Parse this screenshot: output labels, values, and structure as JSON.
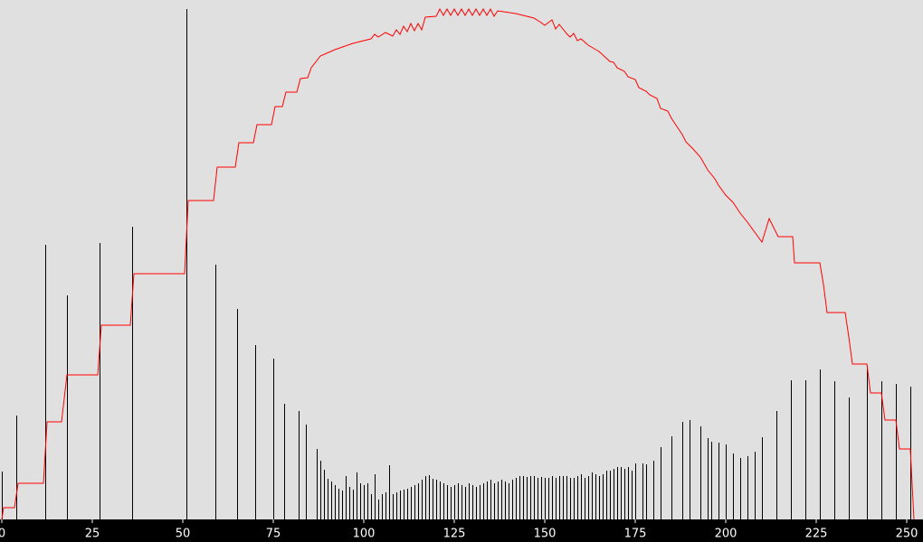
{
  "chart_data": {
    "type": "histogram",
    "background": "#e0e0e0",
    "xlim": [
      -0.5,
      254.5
    ],
    "ylim": [
      0,
      565
    ],
    "xticks": [
      0,
      25,
      50,
      75,
      100,
      125,
      150,
      175,
      200,
      225,
      250
    ],
    "bars": {
      "color": "#000000",
      "x": [
        0,
        4,
        12,
        18,
        27,
        36,
        51,
        59,
        65,
        70,
        75,
        78,
        82,
        84,
        87,
        88,
        89,
        90,
        91,
        92,
        93,
        94,
        95,
        96,
        97,
        98,
        99,
        100,
        101,
        102,
        103,
        104,
        105,
        106,
        107,
        108,
        109,
        110,
        111,
        112,
        113,
        114,
        115,
        116,
        117,
        118,
        119,
        120,
        121,
        122,
        123,
        124,
        125,
        126,
        127,
        128,
        129,
        130,
        131,
        132,
        133,
        134,
        135,
        136,
        137,
        138,
        139,
        140,
        141,
        142,
        143,
        144,
        145,
        146,
        147,
        148,
        149,
        150,
        151,
        152,
        153,
        154,
        155,
        156,
        157,
        158,
        159,
        160,
        161,
        162,
        163,
        164,
        165,
        166,
        167,
        168,
        169,
        170,
        171,
        172,
        173,
        174,
        175,
        177,
        178,
        180,
        182,
        185,
        188,
        190,
        193,
        195,
        196,
        198,
        200,
        202,
        204,
        206,
        208,
        210,
        214,
        218,
        222,
        226,
        230,
        234,
        239,
        243,
        247,
        251
      ],
      "values": [
        53,
        115,
        304,
        248,
        306,
        324,
        565,
        282,
        233,
        193,
        178,
        128,
        120,
        105,
        78,
        65,
        55,
        45,
        42,
        38,
        34,
        32,
        48,
        36,
        33,
        52,
        40,
        38,
        40,
        28,
        50,
        22,
        28,
        30,
        60,
        28,
        30,
        32,
        33,
        34,
        36,
        38,
        40,
        44,
        48,
        49,
        45,
        44,
        42,
        40,
        38,
        36,
        38,
        40,
        38,
        36,
        40,
        38,
        36,
        38,
        40,
        42,
        44,
        40,
        42,
        44,
        42,
        40,
        44,
        46,
        48,
        48,
        47,
        48,
        48,
        46,
        47,
        46,
        46,
        48,
        46,
        48,
        48,
        48,
        46,
        46,
        48,
        50,
        46,
        48,
        52,
        50,
        48,
        50,
        54,
        54,
        56,
        58,
        58,
        56,
        58,
        54,
        62,
        62,
        61,
        65,
        80,
        92,
        108,
        110,
        103,
        90,
        86,
        85,
        83,
        73,
        68,
        70,
        75,
        91,
        120,
        154,
        154,
        166,
        153,
        135,
        170,
        153,
        150,
        147
      ]
    },
    "curve": {
      "color": "#ff0000",
      "x": [
        0,
        0.5,
        3.5,
        4.5,
        11.5,
        12.5,
        16.5,
        18,
        26.5,
        27.5,
        35.5,
        36.5,
        50.5,
        51.5,
        58.5,
        59.5,
        64.5,
        65.5,
        69.5,
        70.5,
        74.5,
        75.5,
        77.5,
        78.5,
        81.5,
        82.5,
        84.5,
        85.5,
        88,
        92,
        97,
        102,
        103,
        104,
        106,
        108,
        109,
        110,
        111,
        112,
        113,
        114,
        115,
        116,
        117,
        120,
        121,
        122,
        123,
        124,
        125,
        126,
        127,
        128,
        129,
        130,
        131,
        132,
        133,
        134,
        135,
        136,
        137,
        142,
        147,
        149,
        150,
        152,
        153,
        154,
        156,
        157,
        158,
        159,
        160,
        162,
        165,
        168,
        169,
        170,
        172,
        173,
        175,
        176,
        178,
        179,
        181,
        182,
        184,
        185,
        186,
        188,
        189,
        191,
        193,
        195,
        197,
        198,
        200,
        202,
        204,
        206,
        208,
        210,
        212,
        214.5,
        218.5,
        219,
        226,
        227,
        228,
        233,
        234,
        235,
        239,
        240,
        243,
        244,
        247,
        248,
        251,
        252
      ],
      "values": [
        0,
        13,
        13,
        40,
        40,
        108,
        108,
        160,
        160,
        215,
        215,
        272,
        272,
        353,
        353,
        390,
        390,
        417,
        417,
        437,
        437,
        457,
        457,
        473,
        473,
        488,
        489,
        500,
        513,
        520,
        527,
        532,
        537,
        534,
        539,
        535,
        542,
        537,
        546,
        540,
        549,
        541,
        549,
        542,
        556,
        557,
        565,
        558,
        565,
        558,
        565,
        558,
        565,
        558,
        565,
        558,
        565,
        558,
        565,
        558,
        565,
        557,
        563,
        560,
        555,
        550,
        547,
        553,
        543,
        548,
        538,
        534,
        538,
        530,
        532,
        525,
        518,
        507,
        506,
        500,
        496,
        490,
        487,
        478,
        474,
        470,
        466,
        455,
        452,
        444,
        438,
        426,
        418,
        410,
        401,
        387,
        377,
        370,
        359,
        351,
        339,
        329,
        318,
        307,
        333,
        313,
        313,
        284,
        284,
        260,
        229,
        229,
        202,
        172,
        172,
        140,
        140,
        110,
        110,
        78,
        78,
        0
      ]
    }
  }
}
